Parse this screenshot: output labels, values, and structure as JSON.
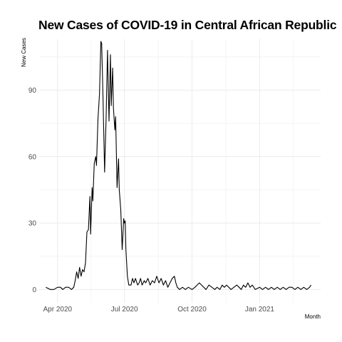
{
  "chart_data": {
    "type": "line",
    "title": "New Cases of COVID-19 in Central African Republic",
    "xlabel": "Month",
    "ylabel": "New Cases",
    "ylim": [
      -6,
      113
    ],
    "yticks": [
      0,
      30,
      60,
      90
    ],
    "xlim": [
      "2020-03-07",
      "2021-03-25"
    ],
    "xticks": [
      {
        "date": "2020-04-01",
        "label": "Apr 2020"
      },
      {
        "date": "2020-07-01",
        "label": "Jul 2020"
      },
      {
        "date": "2020-10-01",
        "label": "Oct 2020"
      },
      {
        "date": "2021-01-01",
        "label": "Jan 2021"
      }
    ],
    "grid": true,
    "legend": "none",
    "line_color": "#000000",
    "series": [
      {
        "points": [
          [
            "2020-03-16",
            1
          ],
          [
            "2020-03-22",
            0
          ],
          [
            "2020-03-27",
            0
          ],
          [
            "2020-04-01",
            1
          ],
          [
            "2020-04-05",
            1
          ],
          [
            "2020-04-08",
            0
          ],
          [
            "2020-04-12",
            1
          ],
          [
            "2020-04-16",
            1
          ],
          [
            "2020-04-20",
            0
          ],
          [
            "2020-04-23",
            1
          ],
          [
            "2020-04-25",
            4
          ],
          [
            "2020-04-27",
            8
          ],
          [
            "2020-04-29",
            5
          ],
          [
            "2020-05-01",
            10
          ],
          [
            "2020-05-03",
            6
          ],
          [
            "2020-05-05",
            9
          ],
          [
            "2020-05-07",
            8
          ],
          [
            "2020-05-09",
            12
          ],
          [
            "2020-05-11",
            26
          ],
          [
            "2020-05-13",
            27
          ],
          [
            "2020-05-15",
            42
          ],
          [
            "2020-05-16",
            25
          ],
          [
            "2020-05-18",
            46
          ],
          [
            "2020-05-19",
            40
          ],
          [
            "2020-05-21",
            57
          ],
          [
            "2020-05-23",
            60
          ],
          [
            "2020-05-24",
            56
          ],
          [
            "2020-05-26",
            77
          ],
          [
            "2020-05-28",
            88
          ],
          [
            "2020-05-30",
            112
          ],
          [
            "2020-05-31",
            111
          ],
          [
            "2020-06-02",
            85
          ],
          [
            "2020-06-04",
            53
          ],
          [
            "2020-06-06",
            77
          ],
          [
            "2020-06-08",
            108
          ],
          [
            "2020-06-10",
            76
          ],
          [
            "2020-06-12",
            106
          ],
          [
            "2020-06-13",
            83
          ],
          [
            "2020-06-15",
            100
          ],
          [
            "2020-06-16",
            82
          ],
          [
            "2020-06-18",
            72
          ],
          [
            "2020-06-19",
            78
          ],
          [
            "2020-06-21",
            46
          ],
          [
            "2020-06-23",
            59
          ],
          [
            "2020-06-24",
            45
          ],
          [
            "2020-06-26",
            36
          ],
          [
            "2020-06-28",
            18
          ],
          [
            "2020-06-30",
            32
          ],
          [
            "2020-07-01",
            30
          ],
          [
            "2020-07-02",
            31
          ],
          [
            "2020-07-03",
            18
          ],
          [
            "2020-07-05",
            6
          ],
          [
            "2020-07-07",
            2
          ],
          [
            "2020-07-10",
            2
          ],
          [
            "2020-07-12",
            5
          ],
          [
            "2020-07-14",
            3
          ],
          [
            "2020-07-16",
            5
          ],
          [
            "2020-07-19",
            2
          ],
          [
            "2020-07-21",
            3
          ],
          [
            "2020-07-23",
            5
          ],
          [
            "2020-07-25",
            2
          ],
          [
            "2020-07-28",
            4
          ],
          [
            "2020-07-30",
            3
          ],
          [
            "2020-08-02",
            5
          ],
          [
            "2020-08-05",
            2
          ],
          [
            "2020-08-08",
            4
          ],
          [
            "2020-08-11",
            3
          ],
          [
            "2020-08-14",
            6
          ],
          [
            "2020-08-17",
            3
          ],
          [
            "2020-08-20",
            5
          ],
          [
            "2020-08-23",
            2
          ],
          [
            "2020-08-26",
            4
          ],
          [
            "2020-08-29",
            1
          ],
          [
            "2020-09-01",
            3
          ],
          [
            "2020-09-04",
            5
          ],
          [
            "2020-09-07",
            6
          ],
          [
            "2020-09-09",
            3
          ],
          [
            "2020-09-11",
            1
          ],
          [
            "2020-09-14",
            0
          ],
          [
            "2020-09-18",
            1
          ],
          [
            "2020-09-22",
            0
          ],
          [
            "2020-09-26",
            1
          ],
          [
            "2020-10-01",
            0
          ],
          [
            "2020-10-05",
            1
          ],
          [
            "2020-10-08",
            2
          ],
          [
            "2020-10-11",
            3
          ],
          [
            "2020-10-14",
            2
          ],
          [
            "2020-10-17",
            1
          ],
          [
            "2020-10-20",
            0
          ],
          [
            "2020-10-24",
            2
          ],
          [
            "2020-10-28",
            1
          ],
          [
            "2020-11-01",
            0
          ],
          [
            "2020-11-04",
            1
          ],
          [
            "2020-11-08",
            0
          ],
          [
            "2020-11-11",
            2
          ],
          [
            "2020-11-14",
            1
          ],
          [
            "2020-11-17",
            2
          ],
          [
            "2020-11-20",
            1
          ],
          [
            "2020-11-23",
            0
          ],
          [
            "2020-11-27",
            1
          ],
          [
            "2020-12-01",
            2
          ],
          [
            "2020-12-04",
            1
          ],
          [
            "2020-12-07",
            0
          ],
          [
            "2020-12-10",
            2
          ],
          [
            "2020-12-13",
            1
          ],
          [
            "2020-12-16",
            3
          ],
          [
            "2020-12-19",
            1
          ],
          [
            "2020-12-22",
            2
          ],
          [
            "2020-12-26",
            0
          ],
          [
            "2021-01-01",
            1
          ],
          [
            "2021-01-05",
            0
          ],
          [
            "2021-01-09",
            1
          ],
          [
            "2021-01-13",
            0
          ],
          [
            "2021-01-17",
            1
          ],
          [
            "2021-01-21",
            0
          ],
          [
            "2021-01-25",
            1
          ],
          [
            "2021-01-29",
            0
          ],
          [
            "2021-02-02",
            1
          ],
          [
            "2021-02-06",
            0
          ],
          [
            "2021-02-10",
            1
          ],
          [
            "2021-02-14",
            1
          ],
          [
            "2021-02-18",
            0
          ],
          [
            "2021-02-22",
            1
          ],
          [
            "2021-02-26",
            0
          ],
          [
            "2021-03-02",
            1
          ],
          [
            "2021-03-06",
            0
          ],
          [
            "2021-03-10",
            1
          ],
          [
            "2021-03-12",
            2
          ]
        ]
      }
    ]
  }
}
